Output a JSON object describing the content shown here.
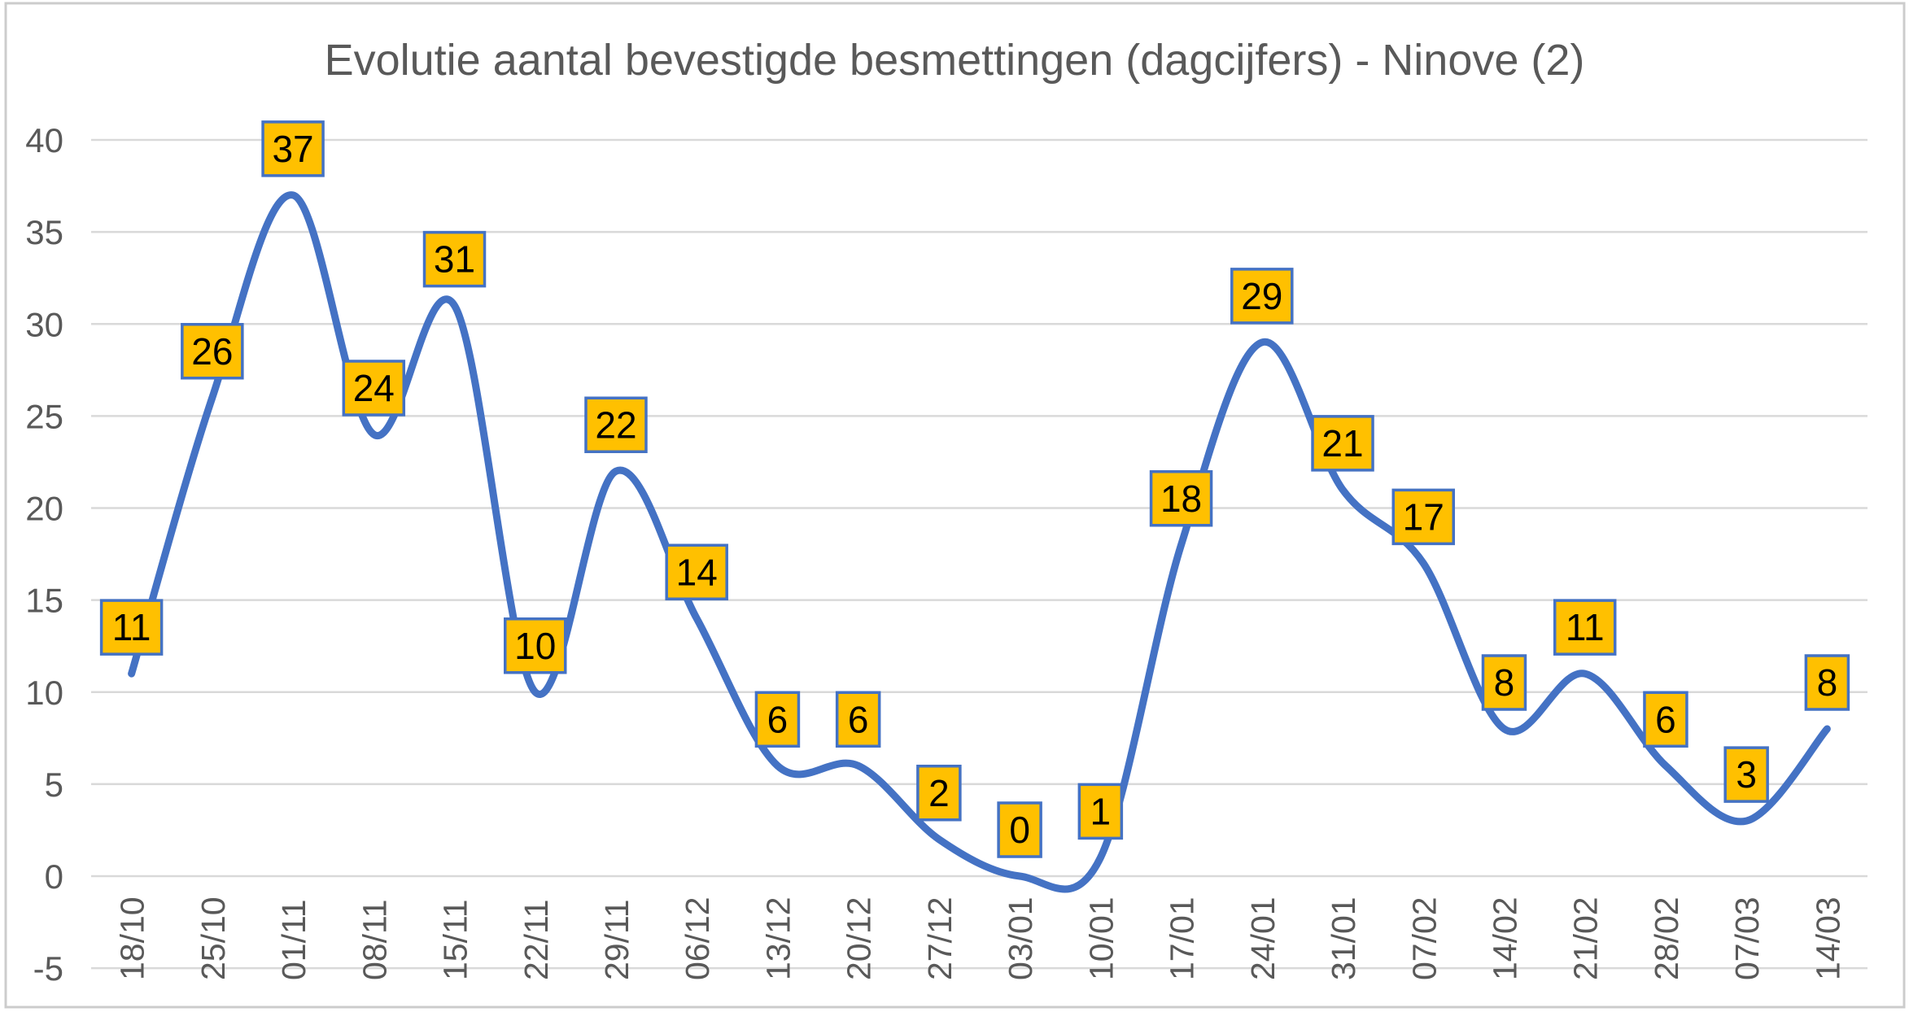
{
  "chart_data": {
    "type": "line",
    "title": "Evolutie aantal bevestigde besmettingen (dagcijfers) - Ninove (2)",
    "categories": [
      "18/10",
      "25/10",
      "01/11",
      "08/11",
      "15/11",
      "22/11",
      "29/11",
      "06/12",
      "13/12",
      "20/12",
      "27/12",
      "03/01",
      "10/01",
      "17/01",
      "24/01",
      "31/01",
      "07/02",
      "14/02",
      "21/02",
      "28/02",
      "07/03",
      "14/03"
    ],
    "values": [
      11,
      26,
      37,
      24,
      31,
      10,
      22,
      14,
      6,
      6,
      2,
      0,
      1,
      18,
      29,
      21,
      17,
      8,
      11,
      6,
      3,
      8
    ],
    "xlabel": "",
    "ylabel": "",
    "ylim": [
      -5,
      40
    ],
    "y_ticks": [
      -5,
      0,
      5,
      10,
      15,
      20,
      25,
      30,
      35,
      40
    ],
    "grid": "horizontal",
    "legend": "none",
    "smooth_line": true,
    "data_labels": "above-each-point",
    "x_tick_rotation_degrees": -90,
    "colors": {
      "line": "#4472C4",
      "label_fill": "#FFC000",
      "label_border": "#4472C4",
      "label_text": "#000000",
      "axis_text": "#595959",
      "title_text": "#595959",
      "gridline": "#D9D9D9",
      "background": "#FFFFFF",
      "frame_border": "#CCCCCC"
    }
  }
}
